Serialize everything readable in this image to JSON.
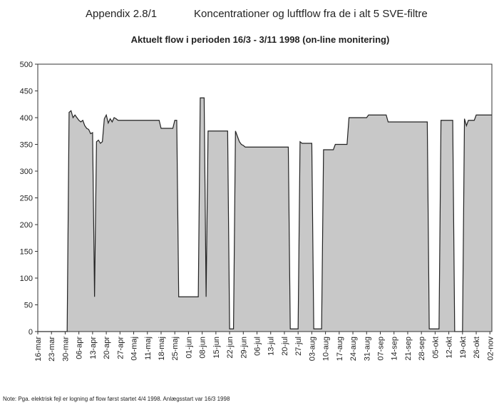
{
  "header": {
    "appendix": "Appendix 2.8/1",
    "title": "Koncentrationer og luftflow fra de i alt 5 SVE-filtre"
  },
  "note": "Note: Pga. elektrisk fejl er logning af flow først startet 4/4 1998. Anlægsstart var 16/3 1998",
  "chart_data": {
    "type": "area",
    "title": "Aktuelt flow i perioden 16/3 - 3/11 1998 (on-line monitering)",
    "color": "#c8c8c8",
    "line_color": "#222222",
    "ylim": [
      0,
      500
    ],
    "yticks": [
      0,
      50,
      100,
      150,
      200,
      250,
      300,
      350,
      400,
      450,
      500
    ],
    "grid": false,
    "categories": [
      "16-mar",
      null,
      null,
      null,
      null,
      null,
      null,
      "23-mar",
      null,
      null,
      null,
      null,
      null,
      null,
      "30-mar",
      null,
      null,
      null,
      null,
      null,
      null,
      "06-apr",
      null,
      null,
      null,
      null,
      null,
      null,
      "13-apr",
      null,
      null,
      null,
      null,
      null,
      null,
      "20-apr",
      null,
      null,
      null,
      null,
      null,
      null,
      "27-apr",
      null,
      null,
      null,
      null,
      null,
      null,
      "04-maj",
      null,
      null,
      null,
      null,
      null,
      null,
      "11-maj",
      null,
      null,
      null,
      null,
      null,
      null,
      "18-maj",
      null,
      null,
      null,
      null,
      null,
      null,
      "25-maj",
      null,
      null,
      null,
      null,
      null,
      null,
      "01-jun",
      null,
      null,
      null,
      null,
      null,
      null,
      "08-jun",
      null,
      null,
      null,
      null,
      null,
      null,
      "15-jun",
      null,
      null,
      null,
      null,
      null,
      null,
      "22-jun",
      null,
      null,
      null,
      null,
      null,
      null,
      "29-jun",
      null,
      null,
      null,
      null,
      null,
      null,
      "06-jul",
      null,
      null,
      null,
      null,
      null,
      null,
      "13-jul",
      null,
      null,
      null,
      null,
      null,
      null,
      "20-jul",
      null,
      null,
      null,
      null,
      null,
      null,
      "27-jul",
      null,
      null,
      null,
      null,
      null,
      null,
      "03-aug",
      null,
      null,
      null,
      null,
      null,
      null,
      "10-aug",
      null,
      null,
      null,
      null,
      null,
      null,
      "17-aug",
      null,
      null,
      null,
      null,
      null,
      null,
      "24-aug",
      null,
      null,
      null,
      null,
      null,
      null,
      "31-aug",
      null,
      null,
      null,
      null,
      null,
      null,
      "07-sep",
      null,
      null,
      null,
      null,
      null,
      null,
      "14-sep",
      null,
      null,
      null,
      null,
      null,
      null,
      "21-sep",
      null,
      null,
      null,
      null,
      null,
      null,
      "28-sep",
      null,
      null,
      null,
      null,
      null,
      null,
      "05-okt",
      null,
      null,
      null,
      null,
      null,
      null,
      "12-okt",
      null,
      null,
      null,
      null,
      null,
      null,
      "19-okt",
      null,
      null,
      null,
      null,
      null,
      null,
      "26-okt",
      null,
      null,
      null,
      null,
      null,
      null,
      "02-nov",
      null
    ],
    "values": [
      0,
      0,
      0,
      0,
      0,
      0,
      0,
      0,
      0,
      0,
      0,
      0,
      0,
      0,
      0,
      0,
      410,
      413,
      400,
      405,
      400,
      395,
      392,
      395,
      385,
      380,
      378,
      370,
      372,
      65,
      355,
      358,
      352,
      355,
      398,
      405,
      390,
      398,
      392,
      400,
      398,
      395,
      395,
      395,
      395,
      395,
      395,
      395,
      395,
      395,
      395,
      395,
      395,
      395,
      395,
      395,
      395,
      395,
      395,
      395,
      395,
      395,
      395,
      380,
      380,
      380,
      380,
      380,
      380,
      380,
      395,
      395,
      65,
      65,
      65,
      65,
      65,
      65,
      65,
      65,
      65,
      65,
      65,
      437,
      437,
      437,
      65,
      375,
      375,
      375,
      375,
      375,
      375,
      375,
      375,
      375,
      375,
      375,
      5,
      5,
      5,
      375,
      365,
      355,
      350,
      348,
      345,
      345,
      345,
      345,
      345,
      345,
      345,
      345,
      345,
      345,
      345,
      345,
      345,
      345,
      345,
      345,
      345,
      345,
      345,
      345,
      345,
      345,
      345,
      5,
      5,
      5,
      5,
      5,
      355,
      352,
      352,
      352,
      352,
      352,
      352,
      5,
      5,
      5,
      5,
      5,
      340,
      340,
      340,
      340,
      340,
      340,
      350,
      350,
      350,
      350,
      350,
      350,
      350,
      400,
      400,
      400,
      400,
      400,
      400,
      400,
      400,
      400,
      400,
      405,
      405,
      405,
      405,
      405,
      405,
      405,
      405,
      405,
      405,
      392,
      392,
      392,
      392,
      392,
      392,
      392,
      392,
      392,
      392,
      392,
      392,
      392,
      392,
      392,
      392,
      392,
      392,
      392,
      392,
      392,
      5,
      5,
      5,
      5,
      5,
      5,
      395,
      395,
      395,
      395,
      395,
      395,
      395,
      0,
      0,
      0,
      0,
      0,
      398,
      385,
      395,
      395,
      395,
      395,
      405,
      405,
      405,
      405,
      405,
      405,
      405,
      405,
      405
    ]
  }
}
